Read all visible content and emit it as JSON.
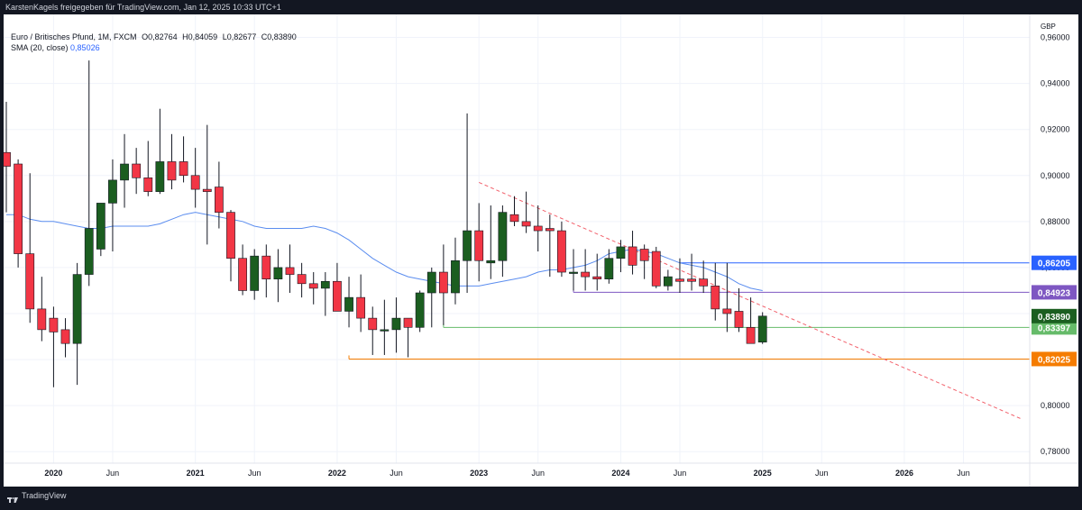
{
  "topbar": {
    "text": "KarstenKagels freigegeben für TradingView.com, Jan 12, 2025 10:33 UTC+1"
  },
  "legend": {
    "symbol": "Euro / Britisches Pfund, 1M, FXCM",
    "open": "O0,82764",
    "high": "H0,84059",
    "low": "L0,82677",
    "close": "C0,83890",
    "sma_label": "SMA (20, close)",
    "sma_value": "0,85026"
  },
  "footer": {
    "brand": "TradingView"
  },
  "colors": {
    "up": "#1b5e20",
    "down": "#f23645",
    "sma": "#5b8def",
    "trend": "#f2606b",
    "level_blue": "#2962ff",
    "level_purple": "#7e57c2",
    "level_green": "#66bb6a",
    "level_orange": "#f57c00"
  },
  "chart_data": {
    "type": "candlestick",
    "currency": "GBP",
    "ylim": [
      0.775,
      0.97
    ],
    "y_ticks": [
      "0,96000",
      "0,94000",
      "0,92000",
      "0,90000",
      "0,88000",
      "0,86000",
      "0,84000",
      "0,82000",
      "0,80000",
      "0,78000"
    ],
    "y_tick_values": [
      0.96,
      0.94,
      0.92,
      0.9,
      0.88,
      0.86,
      0.84,
      0.82,
      0.8,
      0.78
    ],
    "x_range": [
      "2019-09",
      "2026-11"
    ],
    "x_ticks": [
      {
        "label": "2020",
        "date": "2020-01",
        "bold": true
      },
      {
        "label": "Jun",
        "date": "2020-06",
        "bold": false
      },
      {
        "label": "2021",
        "date": "2021-01",
        "bold": true
      },
      {
        "label": "Jun",
        "date": "2021-06",
        "bold": false
      },
      {
        "label": "2022",
        "date": "2022-01",
        "bold": true
      },
      {
        "label": "Jun",
        "date": "2022-06",
        "bold": false
      },
      {
        "label": "2023",
        "date": "2023-01",
        "bold": true
      },
      {
        "label": "Jun",
        "date": "2023-06",
        "bold": false
      },
      {
        "label": "2024",
        "date": "2024-01",
        "bold": true
      },
      {
        "label": "Jun",
        "date": "2024-06",
        "bold": false
      },
      {
        "label": "2025",
        "date": "2025-01",
        "bold": true
      },
      {
        "label": "Jun",
        "date": "2025-06",
        "bold": false
      },
      {
        "label": "2026",
        "date": "2026-01",
        "bold": true
      },
      {
        "label": "Jun",
        "date": "2026-06",
        "bold": false
      }
    ],
    "candles": [
      {
        "d": "2019-09",
        "o": 0.91,
        "h": 0.932,
        "l": 0.884,
        "c": 0.904
      },
      {
        "d": "2019-10",
        "o": 0.905,
        "h": 0.907,
        "l": 0.86,
        "c": 0.866
      },
      {
        "d": "2019-11",
        "o": 0.866,
        "h": 0.901,
        "l": 0.836,
        "c": 0.842
      },
      {
        "d": "2019-12",
        "o": 0.842,
        "h": 0.856,
        "l": 0.828,
        "c": 0.833
      },
      {
        "d": "2020-01",
        "o": 0.838,
        "h": 0.843,
        "l": 0.808,
        "c": 0.832
      },
      {
        "d": "2020-02",
        "o": 0.833,
        "h": 0.838,
        "l": 0.821,
        "c": 0.827
      },
      {
        "d": "2020-03",
        "o": 0.827,
        "h": 0.862,
        "l": 0.809,
        "c": 0.857
      },
      {
        "d": "2020-04",
        "o": 0.857,
        "h": 0.95,
        "l": 0.852,
        "c": 0.877
      },
      {
        "d": "2020-05",
        "o": 0.868,
        "h": 0.888,
        "l": 0.865,
        "c": 0.888
      },
      {
        "d": "2020-06",
        "o": 0.888,
        "h": 0.907,
        "l": 0.867,
        "c": 0.898
      },
      {
        "d": "2020-07",
        "o": 0.898,
        "h": 0.918,
        "l": 0.886,
        "c": 0.905
      },
      {
        "d": "2020-08",
        "o": 0.905,
        "h": 0.912,
        "l": 0.892,
        "c": 0.899
      },
      {
        "d": "2020-09",
        "o": 0.899,
        "h": 0.915,
        "l": 0.891,
        "c": 0.893
      },
      {
        "d": "2020-10",
        "o": 0.893,
        "h": 0.929,
        "l": 0.892,
        "c": 0.906
      },
      {
        "d": "2020-11",
        "o": 0.906,
        "h": 0.918,
        "l": 0.894,
        "c": 0.898
      },
      {
        "d": "2020-12",
        "o": 0.906,
        "h": 0.917,
        "l": 0.897,
        "c": 0.9
      },
      {
        "d": "2021-01",
        "o": 0.9,
        "h": 0.912,
        "l": 0.886,
        "c": 0.894
      },
      {
        "d": "2021-02",
        "o": 0.894,
        "h": 0.922,
        "l": 0.87,
        "c": 0.893
      },
      {
        "d": "2021-03",
        "o": 0.895,
        "h": 0.906,
        "l": 0.877,
        "c": 0.884
      },
      {
        "d": "2021-04",
        "o": 0.884,
        "h": 0.885,
        "l": 0.854,
        "c": 0.864
      },
      {
        "d": "2021-05",
        "o": 0.864,
        "h": 0.87,
        "l": 0.848,
        "c": 0.85
      },
      {
        "d": "2021-06",
        "o": 0.85,
        "h": 0.868,
        "l": 0.846,
        "c": 0.865
      },
      {
        "d": "2021-07",
        "o": 0.865,
        "h": 0.87,
        "l": 0.847,
        "c": 0.855
      },
      {
        "d": "2021-08",
        "o": 0.855,
        "h": 0.868,
        "l": 0.845,
        "c": 0.86
      },
      {
        "d": "2021-09",
        "o": 0.86,
        "h": 0.87,
        "l": 0.849,
        "c": 0.857
      },
      {
        "d": "2021-10",
        "o": 0.857,
        "h": 0.862,
        "l": 0.847,
        "c": 0.853
      },
      {
        "d": "2021-11",
        "o": 0.853,
        "h": 0.858,
        "l": 0.844,
        "c": 0.851
      },
      {
        "d": "2021-12",
        "o": 0.851,
        "h": 0.858,
        "l": 0.839,
        "c": 0.854
      },
      {
        "d": "2022-01",
        "o": 0.854,
        "h": 0.862,
        "l": 0.842,
        "c": 0.841
      },
      {
        "d": "2022-02",
        "o": 0.841,
        "h": 0.856,
        "l": 0.834,
        "c": 0.847
      },
      {
        "d": "2022-03",
        "o": 0.847,
        "h": 0.857,
        "l": 0.832,
        "c": 0.838
      },
      {
        "d": "2022-04",
        "o": 0.838,
        "h": 0.843,
        "l": 0.822,
        "c": 0.833
      },
      {
        "d": "2022-05",
        "o": 0.833,
        "h": 0.846,
        "l": 0.822,
        "c": 0.833
      },
      {
        "d": "2022-06",
        "o": 0.833,
        "h": 0.847,
        "l": 0.823,
        "c": 0.838
      },
      {
        "d": "2022-07",
        "o": 0.838,
        "h": 0.838,
        "l": 0.821,
        "c": 0.834
      },
      {
        "d": "2022-08",
        "o": 0.834,
        "h": 0.85,
        "l": 0.832,
        "c": 0.849
      },
      {
        "d": "2022-09",
        "o": 0.849,
        "h": 0.86,
        "l": 0.834,
        "c": 0.858
      },
      {
        "d": "2022-10",
        "o": 0.858,
        "h": 0.87,
        "l": 0.835,
        "c": 0.849
      },
      {
        "d": "2022-11",
        "o": 0.849,
        "h": 0.873,
        "l": 0.844,
        "c": 0.863
      },
      {
        "d": "2022-12",
        "o": 0.863,
        "h": 0.927,
        "l": 0.849,
        "c": 0.876
      },
      {
        "d": "2023-01",
        "o": 0.876,
        "h": 0.888,
        "l": 0.854,
        "c": 0.863
      },
      {
        "d": "2023-02",
        "o": 0.862,
        "h": 0.887,
        "l": 0.855,
        "c": 0.863
      },
      {
        "d": "2023-03",
        "o": 0.863,
        "h": 0.887,
        "l": 0.856,
        "c": 0.884
      },
      {
        "d": "2023-04",
        "o": 0.883,
        "h": 0.891,
        "l": 0.878,
        "c": 0.88
      },
      {
        "d": "2023-05",
        "o": 0.88,
        "h": 0.893,
        "l": 0.875,
        "c": 0.878
      },
      {
        "d": "2023-06",
        "o": 0.878,
        "h": 0.887,
        "l": 0.867,
        "c": 0.876
      },
      {
        "d": "2023-07",
        "o": 0.877,
        "h": 0.883,
        "l": 0.856,
        "c": 0.876
      },
      {
        "d": "2023-08",
        "o": 0.876,
        "h": 0.88,
        "l": 0.856,
        "c": 0.858
      },
      {
        "d": "2023-09",
        "o": 0.858,
        "h": 0.868,
        "l": 0.85,
        "c": 0.858
      },
      {
        "d": "2023-10",
        "o": 0.858,
        "h": 0.868,
        "l": 0.85,
        "c": 0.856
      },
      {
        "d": "2023-11",
        "o": 0.856,
        "h": 0.866,
        "l": 0.85,
        "c": 0.855
      },
      {
        "d": "2023-12",
        "o": 0.855,
        "h": 0.868,
        "l": 0.853,
        "c": 0.864
      },
      {
        "d": "2024-01",
        "o": 0.864,
        "h": 0.872,
        "l": 0.858,
        "c": 0.869
      },
      {
        "d": "2024-02",
        "o": 0.869,
        "h": 0.876,
        "l": 0.857,
        "c": 0.861
      },
      {
        "d": "2024-03",
        "o": 0.868,
        "h": 0.87,
        "l": 0.855,
        "c": 0.863
      },
      {
        "d": "2024-04",
        "o": 0.867,
        "h": 0.869,
        "l": 0.851,
        "c": 0.852
      },
      {
        "d": "2024-05",
        "o": 0.852,
        "h": 0.859,
        "l": 0.85,
        "c": 0.856
      },
      {
        "d": "2024-06",
        "o": 0.855,
        "h": 0.864,
        "l": 0.849,
        "c": 0.854
      },
      {
        "d": "2024-07",
        "o": 0.855,
        "h": 0.866,
        "l": 0.85,
        "c": 0.854
      },
      {
        "d": "2024-08",
        "o": 0.855,
        "h": 0.863,
        "l": 0.849,
        "c": 0.852
      },
      {
        "d": "2024-09",
        "o": 0.852,
        "h": 0.862,
        "l": 0.837,
        "c": 0.842
      },
      {
        "d": "2024-10",
        "o": 0.842,
        "h": 0.862,
        "l": 0.832,
        "c": 0.84
      },
      {
        "d": "2024-11",
        "o": 0.841,
        "h": 0.851,
        "l": 0.832,
        "c": 0.834
      },
      {
        "d": "2024-12",
        "o": 0.834,
        "h": 0.847,
        "l": 0.828,
        "c": 0.827
      },
      {
        "d": "2025-01",
        "o": 0.8276,
        "h": 0.8406,
        "l": 0.8268,
        "c": 0.8389
      }
    ],
    "sma": {
      "name": "SMA (20, close)",
      "points": [
        {
          "d": "2019-09",
          "v": 0.883
        },
        {
          "d": "2019-10",
          "v": 0.883
        },
        {
          "d": "2019-11",
          "v": 0.881
        },
        {
          "d": "2019-12",
          "v": 0.88
        },
        {
          "d": "2020-01",
          "v": 0.88
        },
        {
          "d": "2020-02",
          "v": 0.879
        },
        {
          "d": "2020-03",
          "v": 0.878
        },
        {
          "d": "2020-04",
          "v": 0.877
        },
        {
          "d": "2020-05",
          "v": 0.877
        },
        {
          "d": "2020-06",
          "v": 0.878
        },
        {
          "d": "2020-07",
          "v": 0.878
        },
        {
          "d": "2020-08",
          "v": 0.878
        },
        {
          "d": "2020-09",
          "v": 0.878
        },
        {
          "d": "2020-10",
          "v": 0.879
        },
        {
          "d": "2020-11",
          "v": 0.881
        },
        {
          "d": "2020-12",
          "v": 0.883
        },
        {
          "d": "2021-01",
          "v": 0.884
        },
        {
          "d": "2021-02",
          "v": 0.883
        },
        {
          "d": "2021-03",
          "v": 0.882
        },
        {
          "d": "2021-04",
          "v": 0.881
        },
        {
          "d": "2021-05",
          "v": 0.88
        },
        {
          "d": "2021-06",
          "v": 0.878
        },
        {
          "d": "2021-07",
          "v": 0.877
        },
        {
          "d": "2021-08",
          "v": 0.877
        },
        {
          "d": "2021-09",
          "v": 0.877
        },
        {
          "d": "2021-10",
          "v": 0.877
        },
        {
          "d": "2021-11",
          "v": 0.878
        },
        {
          "d": "2021-12",
          "v": 0.877
        },
        {
          "d": "2022-01",
          "v": 0.875
        },
        {
          "d": "2022-02",
          "v": 0.872
        },
        {
          "d": "2022-03",
          "v": 0.868
        },
        {
          "d": "2022-04",
          "v": 0.864
        },
        {
          "d": "2022-05",
          "v": 0.861
        },
        {
          "d": "2022-06",
          "v": 0.858
        },
        {
          "d": "2022-07",
          "v": 0.856
        },
        {
          "d": "2022-08",
          "v": 0.855
        },
        {
          "d": "2022-09",
          "v": 0.854
        },
        {
          "d": "2022-10",
          "v": 0.853
        },
        {
          "d": "2022-11",
          "v": 0.852
        },
        {
          "d": "2022-12",
          "v": 0.852
        },
        {
          "d": "2023-01",
          "v": 0.852
        },
        {
          "d": "2023-02",
          "v": 0.853
        },
        {
          "d": "2023-03",
          "v": 0.854
        },
        {
          "d": "2023-04",
          "v": 0.855
        },
        {
          "d": "2023-05",
          "v": 0.856
        },
        {
          "d": "2023-06",
          "v": 0.858
        },
        {
          "d": "2023-07",
          "v": 0.859
        },
        {
          "d": "2023-08",
          "v": 0.859
        },
        {
          "d": "2023-09",
          "v": 0.86
        },
        {
          "d": "2023-10",
          "v": 0.861
        },
        {
          "d": "2023-11",
          "v": 0.863
        },
        {
          "d": "2023-12",
          "v": 0.866
        },
        {
          "d": "2024-01",
          "v": 0.867
        },
        {
          "d": "2024-02",
          "v": 0.868
        },
        {
          "d": "2024-03",
          "v": 0.867
        },
        {
          "d": "2024-04",
          "v": 0.866
        },
        {
          "d": "2024-05",
          "v": 0.864
        },
        {
          "d": "2024-06",
          "v": 0.862
        },
        {
          "d": "2024-07",
          "v": 0.861
        },
        {
          "d": "2024-08",
          "v": 0.86
        },
        {
          "d": "2024-09",
          "v": 0.858
        },
        {
          "d": "2024-10",
          "v": 0.856
        },
        {
          "d": "2024-11",
          "v": 0.853
        },
        {
          "d": "2024-12",
          "v": 0.851
        },
        {
          "d": "2025-01",
          "v": 0.85
        }
      ]
    },
    "trend_line": {
      "from": {
        "d": "2023-01",
        "v": 0.897
      },
      "to": {
        "d": "2026-11",
        "v": 0.794
      }
    },
    "levels": [
      {
        "value": 0.86205,
        "label": "0,86205",
        "from": "2024-06",
        "color": "#2962ff",
        "label_text_color": "#ffffff"
      },
      {
        "value": 0.84923,
        "label": "0,84923",
        "from": "2023-09",
        "color": "#7e57c2",
        "label_text_color": "#ffffff"
      },
      {
        "value": 0.83397,
        "label": "0,83397",
        "from": "2022-10",
        "color": "#66bb6a",
        "label_text_color": "#ffffff"
      },
      {
        "value": 0.82025,
        "label": "0,82025",
        "from": "2022-02",
        "color": "#f57c00",
        "label_text_color": "#ffffff"
      }
    ],
    "last_price": {
      "value": 0.8389,
      "label": "0,83890",
      "color": "#1b5e20"
    }
  }
}
